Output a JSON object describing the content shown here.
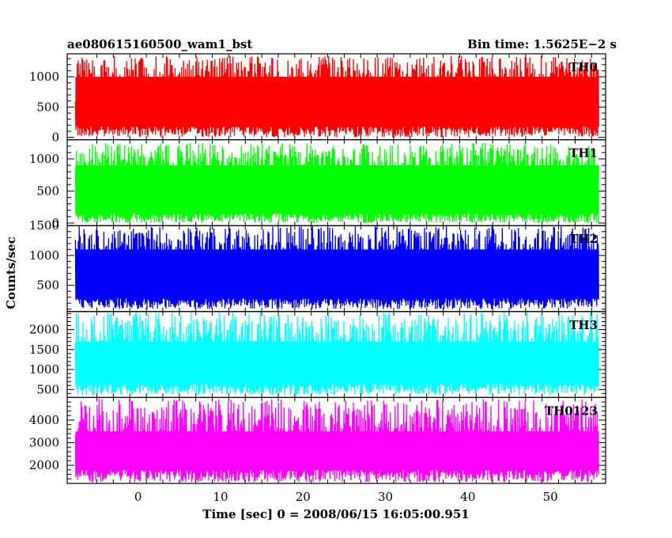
{
  "header": {
    "title_left": "ae080615160500_wam1_bst",
    "title_right": "Bin time: 1.5625E−2 s"
  },
  "axes": {
    "ylabel": "Counts/sec",
    "xlabel": "Time [sec] 0 = 2008/06/15 16:05:00.951"
  },
  "chart_data": [
    {
      "type": "line",
      "name": "TH0",
      "color": "#ff0000",
      "xlim": [
        -8.6,
        56.7
      ],
      "ylim": [
        -40,
        1380
      ],
      "x_range": [
        -7.6,
        55.9
      ],
      "y_band": {
        "lower": [
          0,
          180
        ],
        "core": [
          250,
          1000
        ],
        "upper": [
          1000,
          1350
        ]
      },
      "yticks": [
        0,
        500,
        1000
      ],
      "ytick_labels": [
        "0",
        "500",
        "1000"
      ]
    },
    {
      "type": "line",
      "name": "TH1",
      "color": "#00ff00",
      "xlim": [
        -8.6,
        56.7
      ],
      "ylim": [
        -40,
        1300
      ],
      "x_range": [
        -7.6,
        55.9
      ],
      "y_band": {
        "lower": [
          0,
          150
        ],
        "core": [
          200,
          900
        ],
        "upper": [
          900,
          1250
        ]
      },
      "yticks": [
        0,
        500,
        1000
      ],
      "ytick_labels": [
        "0",
        "500",
        "1000"
      ]
    },
    {
      "type": "line",
      "name": "TH2",
      "color": "#0000ff",
      "xlim": [
        -8.6,
        56.7
      ],
      "ylim": [
        60,
        1500
      ],
      "x_range": [
        -7.6,
        55.9
      ],
      "y_band": {
        "lower": [
          100,
          280
        ],
        "core": [
          350,
          1100
        ],
        "upper": [
          1100,
          1500
        ]
      },
      "yticks": [
        500,
        1000,
        1500
      ],
      "ytick_labels": [
        "500",
        "1000",
        "1500"
      ]
    },
    {
      "type": "line",
      "name": "TH3",
      "color": "#00ffff",
      "xlim": [
        -8.6,
        56.7
      ],
      "ylim": [
        300,
        2450
      ],
      "x_range": [
        -7.6,
        55.9
      ],
      "y_band": {
        "lower": [
          350,
          650
        ],
        "core": [
          700,
          1700
        ],
        "upper": [
          1700,
          2450
        ]
      },
      "yticks": [
        500,
        1000,
        1500,
        2000
      ],
      "ytick_labels": [
        "500",
        "1000",
        "1500",
        "2000"
      ]
    },
    {
      "type": "line",
      "name": "TH0123",
      "color": "#ff00ff",
      "xlim": [
        -8.6,
        56.7
      ],
      "ylim": [
        1200,
        5000
      ],
      "x_range": [
        -7.6,
        55.9
      ],
      "y_band": {
        "lower": [
          1250,
          1800
        ],
        "core": [
          1900,
          3500
        ],
        "upper": [
          3500,
          4950
        ]
      },
      "yticks": [
        2000,
        3000,
        4000
      ],
      "ytick_labels": [
        "2000",
        "3000",
        "4000"
      ],
      "xticks": [
        0,
        10,
        20,
        30,
        40,
        50
      ],
      "xtick_labels": [
        "0",
        "10",
        "20",
        "30",
        "40",
        "50"
      ]
    }
  ]
}
